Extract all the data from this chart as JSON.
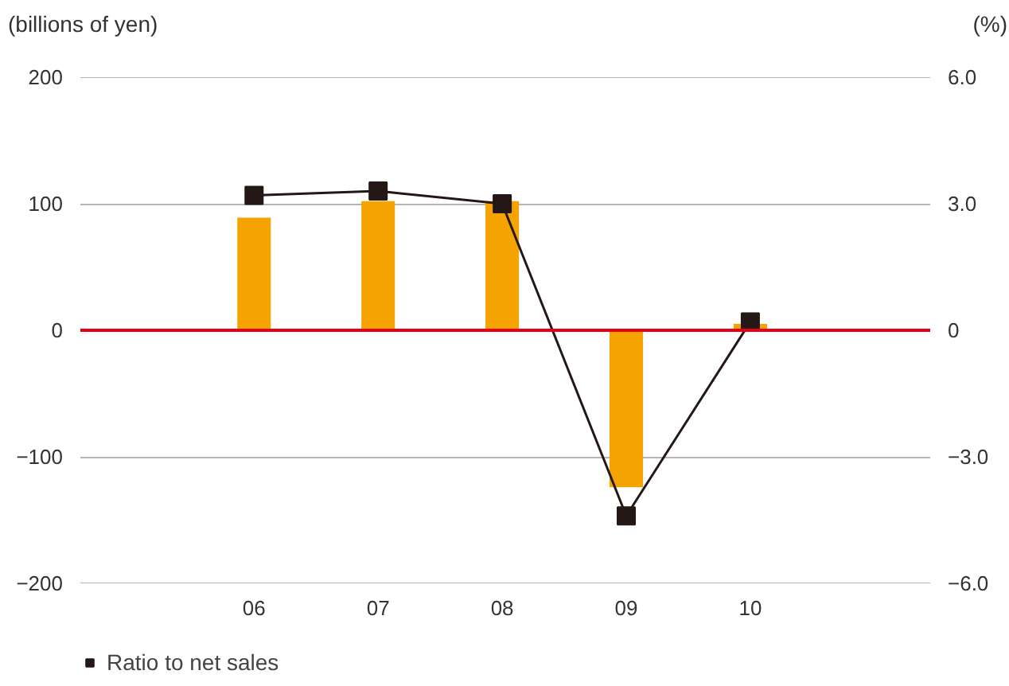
{
  "chart_data": {
    "type": "bar",
    "ylabel": "(billions of yen)",
    "y2label": "(%)",
    "categories": [
      "06",
      "07",
      "08",
      "09",
      "10"
    ],
    "series": [
      {
        "color": "#f5a300",
        "values": [
          89,
          102,
          102,
          -124,
          5
        ]
      },
      {
        "type": "line",
        "name": "Ratio to net sales",
        "color": "#231815",
        "axis": "y2",
        "marker": "square",
        "values": [
          3.2,
          3.3,
          3.0,
          -4.4,
          0.2
        ]
      }
    ],
    "ylim": [
      -200,
      200
    ],
    "yticks": [
      -200,
      -100,
      0,
      100,
      200
    ],
    "y2lim": [
      -6,
      6
    ],
    "y2ticks": [
      {
        "value": -6,
        "label": "−6.0"
      },
      {
        "value": -3,
        "label": "−3.0"
      },
      0,
      {
        "value": 3,
        "label": "3.0"
      },
      {
        "value": 6,
        "label": "6.0"
      }
    ],
    "ref_lines": [
      {
        "axis": "y",
        "value": 0,
        "color": "#e60012"
      }
    ],
    "grid": "y",
    "legend": "bottom left"
  }
}
